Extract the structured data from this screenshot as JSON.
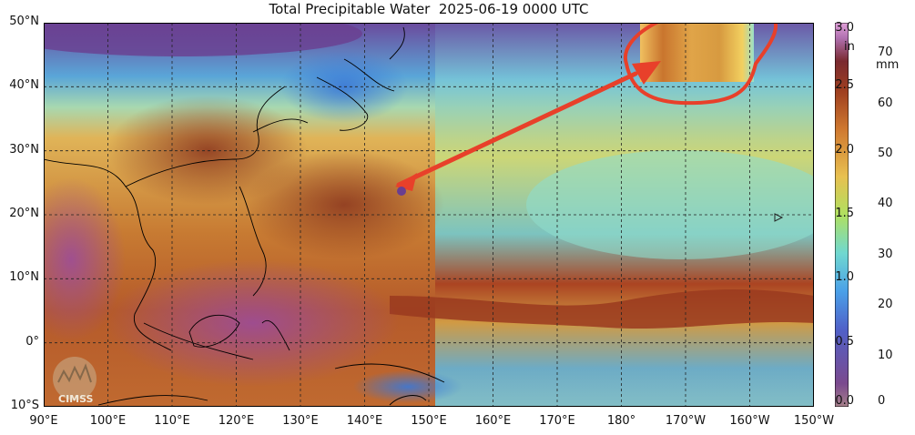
{
  "title": "Total Precipitable Water  2025-06-19 0000 UTC",
  "lat_labels": [
    {
      "text": "50°N",
      "lat": 50
    },
    {
      "text": "40°N",
      "lat": 40
    },
    {
      "text": "30°N",
      "lat": 30
    },
    {
      "text": "20°N",
      "lat": 20
    },
    {
      "text": "10°N",
      "lat": 10
    },
    {
      "text": "0°",
      "lat": 0
    },
    {
      "text": "10°S",
      "lat": -10
    }
  ],
  "lon_labels": [
    {
      "text": "90°E",
      "lon": 90
    },
    {
      "text": "100°E",
      "lon": 100
    },
    {
      "text": "110°E",
      "lon": 110
    },
    {
      "text": "120°E",
      "lon": 120
    },
    {
      "text": "130°E",
      "lon": 130
    },
    {
      "text": "140°E",
      "lon": 140
    },
    {
      "text": "150°E",
      "lon": 150
    },
    {
      "text": "160°E",
      "lon": 160
    },
    {
      "text": "170°E",
      "lon": 170
    },
    {
      "text": "180°",
      "lon": 180
    },
    {
      "text": "170°W",
      "lon": 190
    },
    {
      "text": "160°W",
      "lon": 200
    },
    {
      "text": "150°W",
      "lon": 210
    }
  ],
  "colorbar": {
    "inch_unit": "in",
    "mm_unit": "mm",
    "inch_ticks": [
      "3.0",
      "2.5",
      "2.0",
      "1.5",
      "1.0",
      "0.5",
      "0.0"
    ],
    "inch_values": [
      3.0,
      2.5,
      2.0,
      1.5,
      1.0,
      0.5,
      0.0
    ],
    "mm_ticks": [
      "70",
      "60",
      "50",
      "40",
      "30",
      "20",
      "10",
      "0"
    ],
    "mm_values": [
      70,
      60,
      50,
      40,
      30,
      20,
      10,
      0
    ],
    "mm_max": 76.2
  },
  "logo_text": "CIMSS",
  "colors": {
    "very_moist": "#8a2a18",
    "moist": "#c36a2c",
    "moderate": "#e3a34a",
    "mid": "#d9d260",
    "dry_mid": "#7fd6c0",
    "dry": "#5aa6e0",
    "very_dry": "#5a3f8e",
    "extreme": "#b060b0",
    "annotation": "#e8402a"
  }
}
